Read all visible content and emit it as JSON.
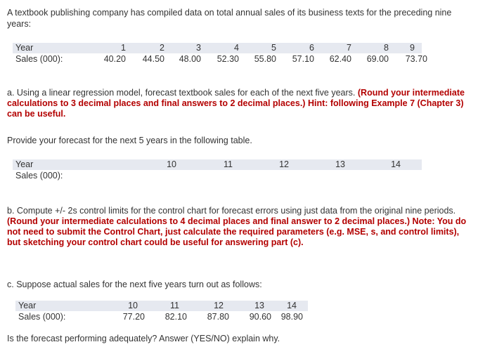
{
  "intro": "A textbook publishing company has compiled data on total annual sales of its business texts for the preceding nine years:",
  "table1": {
    "year_label": "Year",
    "sales_label": "Sales (000):",
    "years": [
      "1",
      "2",
      "3",
      "4",
      "5",
      "6",
      "7",
      "8",
      "9"
    ],
    "sales": [
      "40.20",
      "44.50",
      "48.00",
      "52.30",
      "55.80",
      "57.10",
      "62.40",
      "69.00",
      "73.70"
    ]
  },
  "part_a": {
    "normal": "a. Using a linear regression model, forecast textbook sales for each of the next five years. ",
    "bold": "(Round your intermediate calculations to 3 decimal places and final answers to 2 decimal places.) Hint: following Example 7 (Chapter 3) can be useful."
  },
  "provide": "Provide your forecast for the next 5 years in the following table.",
  "table2": {
    "year_label": "Year",
    "sales_label": "Sales (000):",
    "years": [
      "10",
      "11",
      "12",
      "13",
      "14"
    ]
  },
  "part_b": {
    "normal": "b. Compute +/- 2s control limits for the control chart for forecast errors using just data from the original nine periods. ",
    "bold": "(Round your intermediate calculations to 4 decimal places and final answer to 2 decimal places.) Note: You do not need to submit the Control Chart, just calculate the required parameters (e.g. MSE, s, and control limits), but sketching your control chart could be useful for answering part (c)."
  },
  "part_c": "c. Suppose actual sales for the next five years turn out as follows:",
  "table3": {
    "year_label": "Year",
    "sales_label": "Sales (000):",
    "years": [
      "10",
      "11",
      "12",
      "13",
      "14"
    ],
    "sales": [
      "77.20",
      "82.10",
      "87.80",
      "90.60",
      "98.90"
    ]
  },
  "question": "Is the forecast performing adequately? Answer (YES/NO) explain why."
}
